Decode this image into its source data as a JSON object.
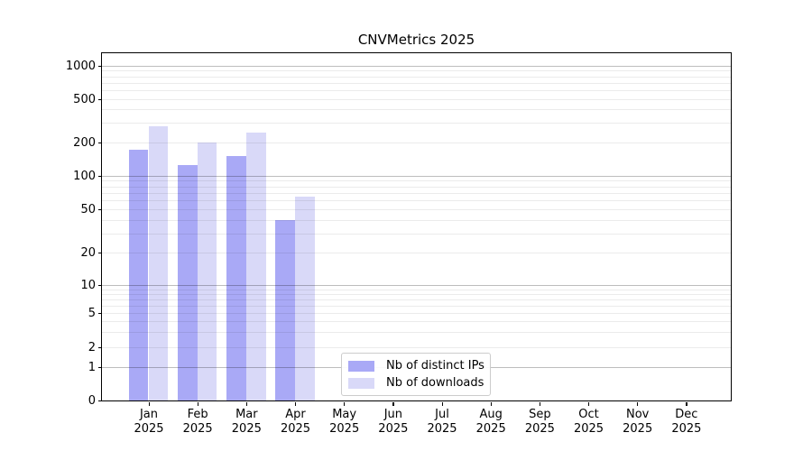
{
  "chart_data": {
    "type": "bar",
    "title": "CNVMetrics 2025",
    "xlabel": "",
    "ylabel": "",
    "yscale": "symlog",
    "ylim": [
      0,
      1300
    ],
    "grid": "on",
    "yticks": [
      0,
      1,
      2,
      5,
      10,
      20,
      50,
      100,
      200,
      500,
      1000
    ],
    "major_yticks": [
      1,
      10,
      100,
      1000
    ],
    "minor_gridline_values": [
      3,
      4,
      6,
      7,
      8,
      9,
      30,
      40,
      60,
      70,
      80,
      90,
      300,
      400,
      600,
      700,
      800,
      900
    ],
    "categories": [
      {
        "month": "Jan",
        "year": "2025"
      },
      {
        "month": "Feb",
        "year": "2025"
      },
      {
        "month": "Mar",
        "year": "2025"
      },
      {
        "month": "Apr",
        "year": "2025"
      },
      {
        "month": "May",
        "year": "2025"
      },
      {
        "month": "Jun",
        "year": "2025"
      },
      {
        "month": "Jul",
        "year": "2025"
      },
      {
        "month": "Aug",
        "year": "2025"
      },
      {
        "month": "Sep",
        "year": "2025"
      },
      {
        "month": "Oct",
        "year": "2025"
      },
      {
        "month": "Nov",
        "year": "2025"
      },
      {
        "month": "Dec",
        "year": "2025"
      }
    ],
    "series": [
      {
        "name": "Nb of distinct IPs",
        "key": "distinct-ips",
        "color": "#a9a9f6",
        "values": [
          170,
          125,
          150,
          40,
          0,
          0,
          0,
          0,
          0,
          0,
          0,
          0
        ]
      },
      {
        "name": "Nb of downloads",
        "key": "downloads",
        "color": "#d9d9f8",
        "values": [
          283,
          198,
          245,
          65,
          0,
          0,
          0,
          0,
          0,
          0,
          0,
          0
        ]
      }
    ],
    "legend": {
      "position": "lower center-left inside plot"
    }
  },
  "colors": {
    "background": "#ffffff",
    "spine": "#000000",
    "major_grid": "rgba(0,0,0,0.26)",
    "minor_grid": "rgba(0,0,0,0.08)",
    "text": "#000000"
  }
}
